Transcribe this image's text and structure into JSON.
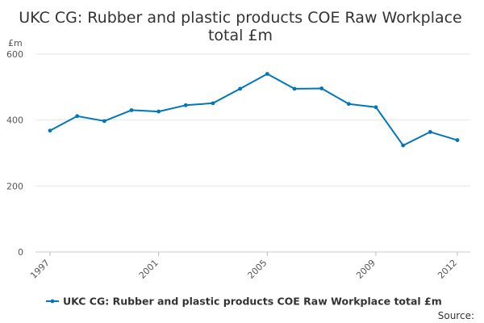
{
  "chart_data": {
    "type": "line",
    "title": "UKC CG: Rubber and plastic products COE Raw Workplace total £m",
    "title_lines": [
      "UKC CG: Rubber and plastic products COE Raw Workplace",
      "total £m"
    ],
    "ylabel": "£m",
    "ylim": [
      0,
      600
    ],
    "yticks": [
      "0",
      "200",
      "400",
      "600"
    ],
    "xlim": [
      1997,
      2012
    ],
    "xticks": [
      "1997",
      "2001",
      "2005",
      "2009",
      "2012"
    ],
    "grid": true,
    "legend_position": "bottom",
    "color": "#0077b6",
    "series": [
      {
        "name": "UKC CG: Rubber and plastic products COE Raw Workplace total £m",
        "x": [
          1997,
          1998,
          1999,
          2000,
          2001,
          2002,
          2003,
          2004,
          2005,
          2006,
          2007,
          2008,
          2009,
          2010,
          2011,
          2012
        ],
        "values": [
          368,
          412,
          397,
          430,
          426,
          445,
          451,
          495,
          540,
          495,
          496,
          449,
          439,
          323,
          364,
          339
        ]
      }
    ]
  },
  "footer": {
    "source": "Source:"
  }
}
